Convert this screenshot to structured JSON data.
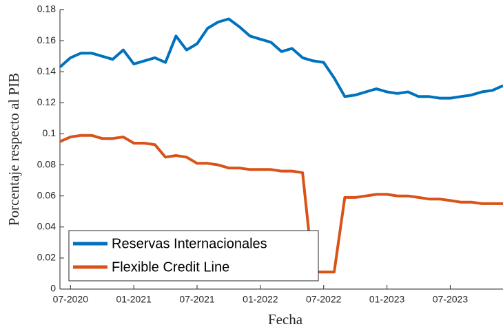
{
  "chart_data": {
    "type": "line",
    "xlabel": "Fecha",
    "ylabel": "Porcentaje respecto al PIB",
    "categories": [
      "06-2020",
      "07-2020",
      "08-2020",
      "09-2020",
      "10-2020",
      "11-2020",
      "12-2020",
      "01-2021",
      "02-2021",
      "03-2021",
      "04-2021",
      "05-2021",
      "06-2021",
      "07-2021",
      "08-2021",
      "09-2021",
      "10-2021",
      "11-2021",
      "12-2021",
      "01-2022",
      "02-2022",
      "03-2022",
      "04-2022",
      "05-2022",
      "06-2022",
      "07-2022",
      "08-2022",
      "09-2022",
      "10-2022",
      "11-2022",
      "12-2022",
      "01-2023",
      "02-2023",
      "03-2023",
      "04-2023",
      "05-2023",
      "06-2023",
      "07-2023",
      "08-2023",
      "09-2023",
      "10-2023",
      "11-2023",
      "12-2023"
    ],
    "series": [
      {
        "name": "Reservas Internacionales",
        "color": "#0072BD",
        "values": [
          0.143,
          0.149,
          0.152,
          0.152,
          0.15,
          0.148,
          0.154,
          0.145,
          0.147,
          0.149,
          0.146,
          0.163,
          0.154,
          0.158,
          0.168,
          0.172,
          0.174,
          0.169,
          0.163,
          0.161,
          0.159,
          0.153,
          0.155,
          0.149,
          0.147,
          0.146,
          0.136,
          0.124,
          0.125,
          0.127,
          0.129,
          0.127,
          0.126,
          0.127,
          0.124,
          0.124,
          0.123,
          0.123,
          0.124,
          0.125,
          0.127,
          0.128,
          0.131
        ]
      },
      {
        "name": "Flexible Credit Line",
        "color": "#D95319",
        "values": [
          0.095,
          0.098,
          0.099,
          0.099,
          0.097,
          0.097,
          0.098,
          0.094,
          0.094,
          0.093,
          0.085,
          0.086,
          0.085,
          0.081,
          0.081,
          0.08,
          0.078,
          0.078,
          0.077,
          0.077,
          0.077,
          0.076,
          0.076,
          0.075,
          0.011,
          0.011,
          0.011,
          0.059,
          0.059,
          0.06,
          0.061,
          0.061,
          0.06,
          0.06,
          0.059,
          0.058,
          0.058,
          0.057,
          0.056,
          0.056,
          0.055,
          0.055,
          0.055
        ]
      }
    ],
    "xticks": [
      "07-2020",
      "01-2021",
      "07-2021",
      "01-2022",
      "07-2022",
      "01-2023",
      "07-2023"
    ],
    "ylim": [
      0,
      0.18
    ],
    "yticks": [
      0,
      0.02,
      0.04,
      0.06,
      0.08,
      0.1,
      0.12,
      0.14,
      0.16,
      0.18
    ],
    "legend": "lower left"
  }
}
